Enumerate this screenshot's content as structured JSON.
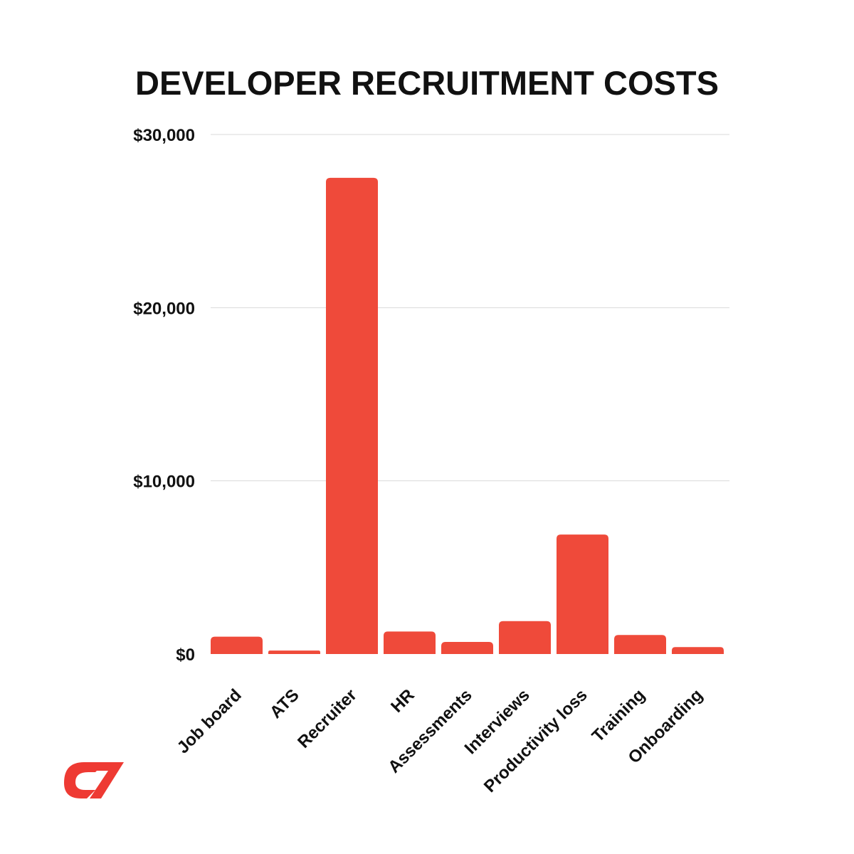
{
  "colors": {
    "bar": "#ef4a3a",
    "logo": "#ee3a33",
    "text": "#111111",
    "grid": "#d9d9d9",
    "background": "#ffffff"
  },
  "logo_icon": "brand-logo-icon",
  "chart_data": {
    "type": "bar",
    "title": "DEVELOPER RECRUITMENT COSTS",
    "xlabel": "",
    "ylabel": "",
    "categories": [
      "Job board",
      "ATS",
      "Recruiter",
      "HR",
      "Assessments",
      "Interviews",
      "Productivity loss",
      "Training",
      "Onboarding"
    ],
    "values": [
      1000,
      200,
      27500,
      1300,
      700,
      1900,
      6900,
      1100,
      400
    ],
    "ylim": [
      0,
      30000
    ],
    "yticks": [
      0,
      10000,
      20000,
      30000
    ],
    "ytick_labels": [
      "$0",
      "$10,000",
      "$20,000",
      "$30,000"
    ],
    "grid": true,
    "legend": "none"
  }
}
